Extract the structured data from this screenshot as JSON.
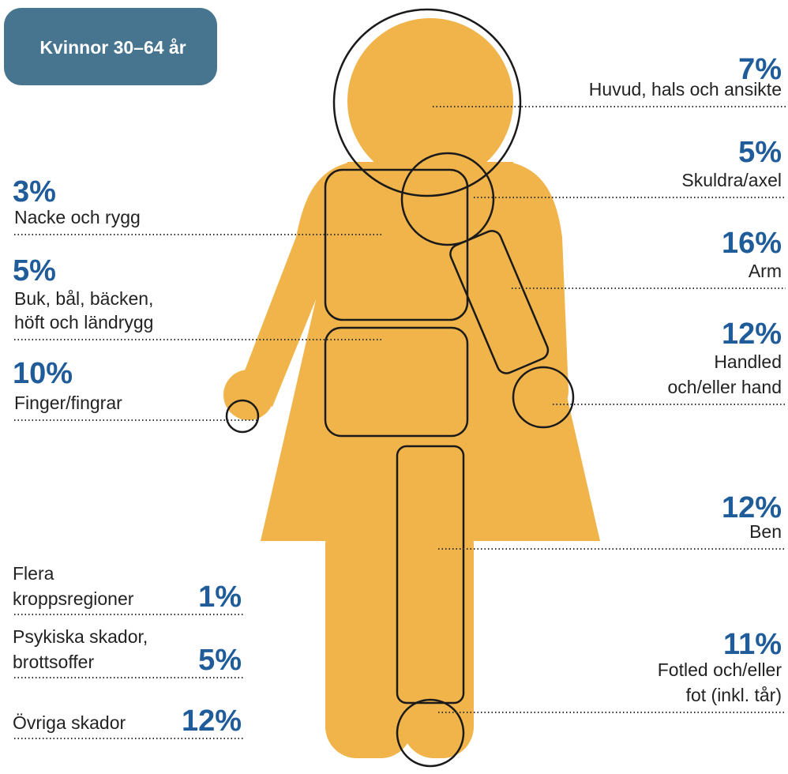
{
  "badge": "Kvinnor 30–64 år",
  "right": [
    {
      "value": "7%",
      "label": [
        "Huvud, hals och ansikte"
      ]
    },
    {
      "value": "5%",
      "label": [
        "Skuldra/axel"
      ]
    },
    {
      "value": "16%",
      "label": [
        "Arm"
      ]
    },
    {
      "value": "12%",
      "label": [
        "Handled",
        "och/eller hand"
      ]
    },
    {
      "value": "12%",
      "label": [
        "Ben"
      ]
    },
    {
      "value": "11%",
      "label": [
        "Fotled och/eller",
        "fot (inkl. tår)"
      ]
    }
  ],
  "left": [
    {
      "value": "3%",
      "label": [
        "Nacke och rygg"
      ]
    },
    {
      "value": "5%",
      "label": [
        "Buk, bål, bäcken,",
        "höft och ländrygg"
      ]
    },
    {
      "value": "10%",
      "label": [
        "Finger/fingrar"
      ]
    }
  ],
  "other": [
    {
      "value": "1%",
      "label": [
        "Flera",
        "kroppsregioner"
      ]
    },
    {
      "value": "5%",
      "label": [
        "Psykiska skador,",
        "brottsoffer"
      ]
    },
    {
      "value": "12%",
      "label": [
        "Övriga skador"
      ]
    }
  ]
}
